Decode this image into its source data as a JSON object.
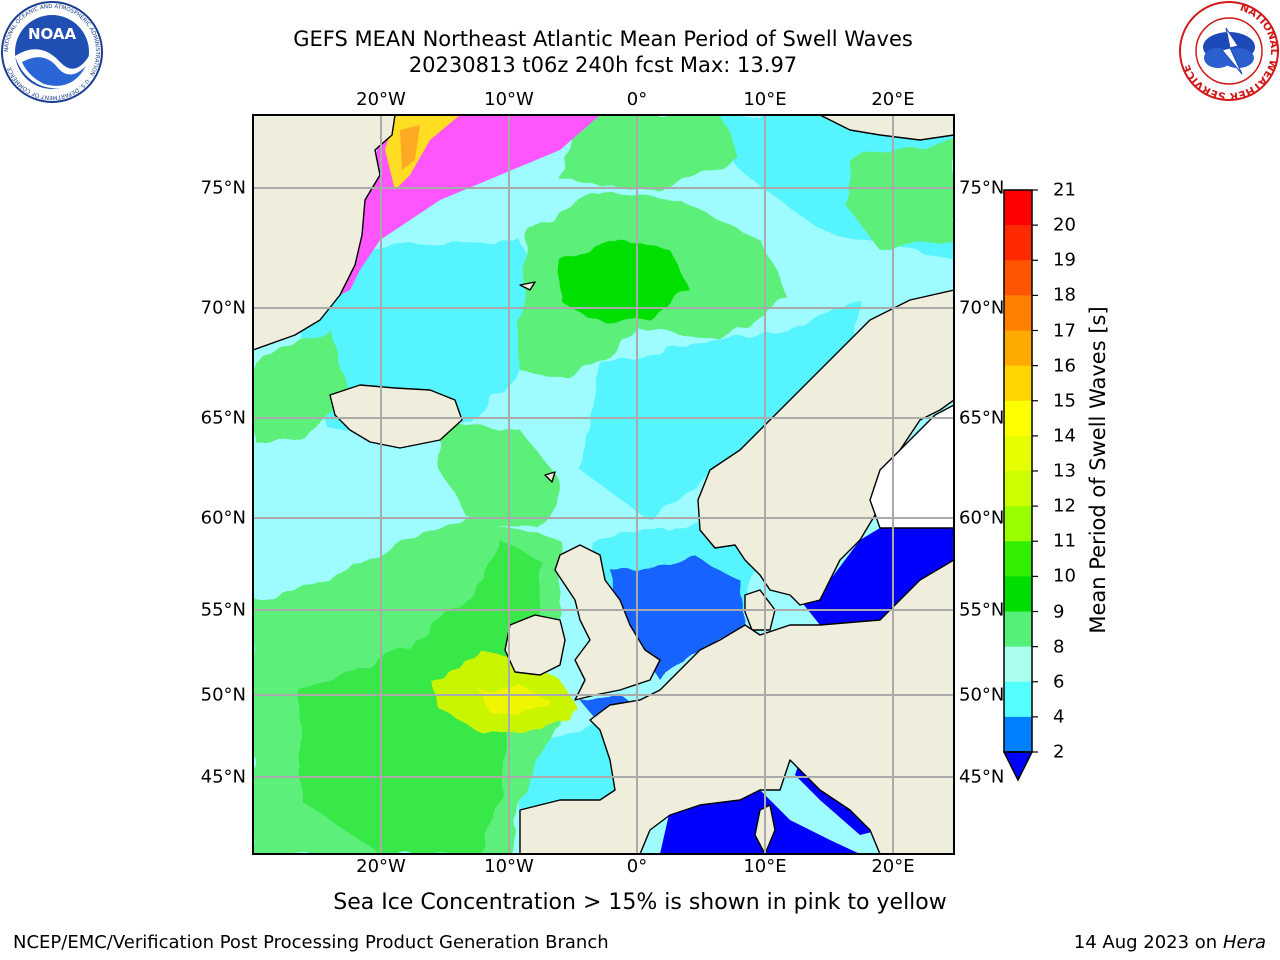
{
  "title_line1": "GEFS MEAN Northeast Atlantic Mean Period of Swell Waves",
  "title_line2": "20230813 t06z 240h fcst   Max: 13.97",
  "lon_labels": [
    "20°W",
    "10°W",
    "0°",
    "10°E",
    "20°E"
  ],
  "lat_labels": [
    "75°N",
    "70°N",
    "65°N",
    "60°N",
    "55°N",
    "50°N",
    "45°N"
  ],
  "colorbar": {
    "title": "Mean Period of Swell Waves [s]",
    "ticks": [
      "21",
      "20",
      "19",
      "18",
      "17",
      "16",
      "15",
      "14",
      "13",
      "12",
      "11",
      "10",
      "9",
      "8",
      "6",
      "4",
      "2"
    ],
    "colors": [
      "#ff0000",
      "#ff2a00",
      "#ff5500",
      "#ff8000",
      "#ffaa00",
      "#ffd500",
      "#ffff00",
      "#e6ff00",
      "#ccff00",
      "#99ff00",
      "#33ee00",
      "#00dd00",
      "#55f07a",
      "#aaffee",
      "#55ffff",
      "#00ffff",
      "#0080ff"
    ],
    "under_color": "#0000ff"
  },
  "palette": {
    "land": "#efeddc",
    "ocean_mid": "#9efbff",
    "ocean_cyan": "#55f4ff",
    "green": "#5cf07a",
    "bright_green": "#00e000",
    "yellow_green": "#c9f500",
    "blue": "#1464ff",
    "deep_blue": "#0000ff",
    "ice_pink": "#ff55ff",
    "ice_yellow": "#ffdd22",
    "grid": "#aaaaaa"
  },
  "ice_note": "Sea Ice Concentration > 15% is shown in pink to yellow",
  "footer_left": "NCEP/EMC/Verification Post Processing Product Generation Branch",
  "footer_date": "14 Aug 2023 on",
  "footer_host": "Hera",
  "logos": {
    "left": "NOAA",
    "left_ring": "NATIONAL OCEANIC AND ATMOSPHERIC ADMINISTRATION · U.S. DEPARTMENT OF COMMERCE",
    "right_ring": "NATIONAL WEATHER SERVICE"
  }
}
